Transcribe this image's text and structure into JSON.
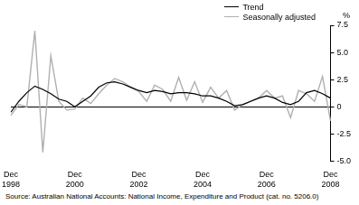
{
  "chart_data": {
    "type": "line",
    "ylabel": "%",
    "source": "Source: Australian National Accounts: National Income, Expenditure and Product (cat. no. 5206.0)",
    "categories": [
      "Dec 1998",
      null,
      null,
      null,
      null,
      null,
      null,
      null,
      "Dec 2000",
      null,
      null,
      null,
      null,
      null,
      null,
      null,
      "Dec 2002",
      null,
      null,
      null,
      null,
      null,
      null,
      null,
      "Dec 2004",
      null,
      null,
      null,
      null,
      null,
      null,
      null,
      "Dec 2006",
      null,
      null,
      null,
      null,
      null,
      null,
      null,
      "Dec 2008"
    ],
    "series": [
      {
        "name": "Trend",
        "color": "#000000",
        "values": [
          -0.5,
          0.5,
          1.3,
          1.9,
          1.6,
          1.2,
          0.7,
          0.5,
          0.0,
          0.5,
          1.0,
          1.8,
          2.2,
          2.3,
          2.1,
          1.8,
          1.5,
          1.3,
          1.5,
          1.4,
          1.2,
          1.3,
          1.3,
          1.2,
          1.0,
          1.0,
          0.8,
          0.5,
          0.1,
          0.2,
          0.5,
          0.8,
          1.0,
          0.8,
          0.4,
          0.2,
          0.5,
          1.3,
          1.5,
          1.2,
          0.8
        ]
      },
      {
        "name": "Seasonally adjusted",
        "color": "#b0b0b0",
        "values": [
          -0.8,
          0.2,
          0.0,
          7.0,
          -4.2,
          4.7,
          0.5,
          -0.3,
          -0.2,
          0.8,
          0.3,
          1.2,
          2.0,
          2.6,
          2.3,
          1.8,
          1.4,
          0.5,
          2.0,
          1.6,
          0.5,
          2.7,
          0.6,
          2.3,
          0.4,
          1.8,
          0.8,
          1.5,
          -0.3,
          0.2,
          0.5,
          0.8,
          1.5,
          0.8,
          1.0,
          -1.0,
          1.5,
          1.2,
          0.5,
          2.8,
          -1.3
        ]
      }
    ],
    "ylim": [
      -5,
      7.5
    ],
    "yticks": [
      {
        "value": -5,
        "label": "-5.0"
      },
      -2.5,
      0,
      2.5,
      {
        "value": 5,
        "label": "5.0"
      },
      7.5
    ],
    "grid": false,
    "legend": "top-right"
  }
}
